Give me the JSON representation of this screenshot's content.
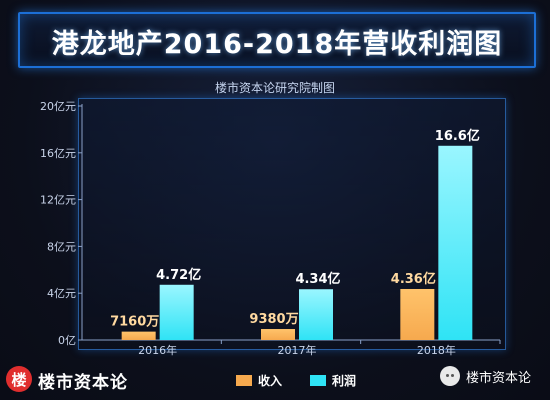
{
  "title": "港龙地产2016-2018年营收利润图",
  "source": "楼市资本论研究院制图",
  "footer": {
    "logo_char": "楼",
    "brand": "楼市资本论",
    "wechat_label": "楼市资本论"
  },
  "colors": {
    "revenue": "#f6a94e",
    "profit": "#2fe3f5",
    "accent": "#1c6fd6"
  },
  "chart_data": {
    "type": "bar",
    "title": "港龙地产2016-2018年营收利润图",
    "subtitle": "楼市资本论研究院制图",
    "categories": [
      "2016年",
      "2017年",
      "2018年"
    ],
    "series": [
      {
        "name": "收入",
        "values": [
          0.716,
          0.938,
          4.36
        ],
        "labels": [
          "7160万",
          "9380万",
          "4.36亿"
        ]
      },
      {
        "name": "利润",
        "values": [
          4.72,
          4.34,
          16.6
        ],
        "labels": [
          "4.72亿",
          "4.34亿",
          "16.6亿"
        ]
      }
    ],
    "yticks": [
      "0亿",
      "4亿元",
      "8亿元",
      "12亿元",
      "16亿元",
      "20亿元"
    ],
    "ylim": [
      0,
      20
    ],
    "grid": false,
    "legend": "bottom"
  }
}
